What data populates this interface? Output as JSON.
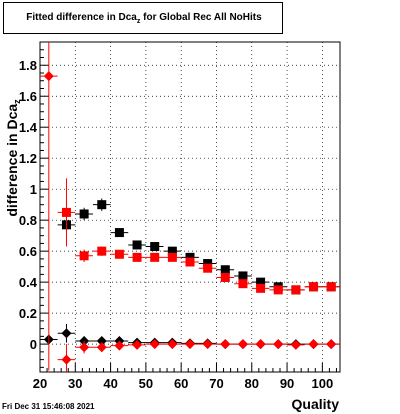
{
  "title": {
    "main": "Fitted difference in Dca",
    "sub": "z",
    "suffix": " for Global Rec All NoHits"
  },
  "datestamp": "Fri Dec 31 15:46:08 2021",
  "chart_data": {
    "type": "scatter",
    "xlabel": "Quality",
    "ylabel": "difference in Dca",
    "ylabel_sub": "z",
    "xlim": [
      20,
      105
    ],
    "ylim": [
      -0.18,
      1.95
    ],
    "grid": true,
    "xticks": [
      20,
      30,
      40,
      50,
      60,
      70,
      80,
      90,
      100
    ],
    "yticks": [
      0,
      0.2,
      0.4,
      0.6,
      0.8,
      1,
      1.2,
      1.4,
      1.6,
      1.8
    ],
    "ytick_labels": [
      "0",
      "0.2",
      "0.4",
      "0.6",
      "0.8",
      "1",
      "1.2",
      "1.4",
      "1.6",
      "1.8"
    ],
    "series": [
      {
        "marker": "square",
        "color": "#000000",
        "points": [
          {
            "x": 27.5,
            "y": 0.77,
            "err": 0.05
          },
          {
            "x": 32.5,
            "y": 0.84,
            "err": 0.04
          },
          {
            "x": 37.5,
            "y": 0.9,
            "err": 0.04
          },
          {
            "x": 42.5,
            "y": 0.72,
            "err": 0.02
          },
          {
            "x": 47.5,
            "y": 0.64,
            "err": 0.02
          },
          {
            "x": 52.5,
            "y": 0.63,
            "err": 0.02
          },
          {
            "x": 57.5,
            "y": 0.6,
            "err": 0.02
          },
          {
            "x": 62.5,
            "y": 0.56,
            "err": 0.02
          },
          {
            "x": 67.5,
            "y": 0.52,
            "err": 0.02
          },
          {
            "x": 72.5,
            "y": 0.48,
            "err": 0.02
          },
          {
            "x": 77.5,
            "y": 0.44,
            "err": 0.02
          },
          {
            "x": 82.5,
            "y": 0.4,
            "err": 0.02
          },
          {
            "x": 87.5,
            "y": 0.37,
            "err": 0.02
          },
          {
            "x": 92.5,
            "y": 0.35,
            "err": 0.02
          },
          {
            "x": 97.5,
            "y": 0.37,
            "err": 0.02
          },
          {
            "x": 102.5,
            "y": 0.37,
            "err": 0.02
          }
        ]
      },
      {
        "marker": "square",
        "color": "#ff0000",
        "points": [
          {
            "x": 27.5,
            "y": 0.85,
            "err": 0.22
          },
          {
            "x": 32.5,
            "y": 0.57,
            "err": 0.04
          },
          {
            "x": 37.5,
            "y": 0.6,
            "err": 0.03
          },
          {
            "x": 42.5,
            "y": 0.58,
            "err": 0.02
          },
          {
            "x": 47.5,
            "y": 0.56,
            "err": 0.02
          },
          {
            "x": 52.5,
            "y": 0.56,
            "err": 0.02
          },
          {
            "x": 57.5,
            "y": 0.56,
            "err": 0.02
          },
          {
            "x": 62.5,
            "y": 0.53,
            "err": 0.02
          },
          {
            "x": 67.5,
            "y": 0.49,
            "err": 0.02
          },
          {
            "x": 72.5,
            "y": 0.43,
            "err": 0.02
          },
          {
            "x": 77.5,
            "y": 0.39,
            "err": 0.02
          },
          {
            "x": 82.5,
            "y": 0.36,
            "err": 0.02
          },
          {
            "x": 87.5,
            "y": 0.35,
            "err": 0.02
          },
          {
            "x": 92.5,
            "y": 0.35,
            "err": 0.02
          },
          {
            "x": 97.5,
            "y": 0.37,
            "err": 0.02
          },
          {
            "x": 102.5,
            "y": 0.37,
            "err": 0.02
          }
        ]
      },
      {
        "marker": "diamond",
        "color": "#000000",
        "points": [
          {
            "x": 22.5,
            "y": 0.03,
            "err": 0.03
          },
          {
            "x": 27.5,
            "y": 0.07,
            "err": 0.06
          },
          {
            "x": 32.5,
            "y": 0.02,
            "err": 0.03
          },
          {
            "x": 37.5,
            "y": 0.02,
            "err": 0.02
          },
          {
            "x": 42.5,
            "y": 0.02,
            "err": 0.02
          },
          {
            "x": 47.5,
            "y": 0.01,
            "err": 0.02
          },
          {
            "x": 52.5,
            "y": 0.01,
            "err": 0.02
          },
          {
            "x": 57.5,
            "y": 0.01,
            "err": 0.02
          },
          {
            "x": 62.5,
            "y": 0.005,
            "err": 0.02
          },
          {
            "x": 67.5,
            "y": 0.005,
            "err": 0.02
          },
          {
            "x": 72.5,
            "y": 0.0,
            "err": 0.02
          },
          {
            "x": 77.5,
            "y": 0.0,
            "err": 0.02
          },
          {
            "x": 82.5,
            "y": 0.0,
            "err": 0.02
          },
          {
            "x": 87.5,
            "y": 0.0,
            "err": 0.02
          },
          {
            "x": 92.5,
            "y": 0.0,
            "err": 0.02
          },
          {
            "x": 97.5,
            "y": 0.0,
            "err": 0.02
          },
          {
            "x": 102.5,
            "y": 0.0,
            "err": 0.02
          }
        ]
      },
      {
        "marker": "diamond",
        "color": "#ff0000",
        "points": [
          {
            "x": 22.5,
            "y": 1.73,
            "err": 1.9
          },
          {
            "x": 27.5,
            "y": -0.1,
            "err": 0.1
          },
          {
            "x": 32.5,
            "y": -0.02,
            "err": 0.04
          },
          {
            "x": 37.5,
            "y": -0.02,
            "err": 0.03
          },
          {
            "x": 42.5,
            "y": -0.01,
            "err": 0.02
          },
          {
            "x": 47.5,
            "y": -0.005,
            "err": 0.02
          },
          {
            "x": 52.5,
            "y": 0.0,
            "err": 0.02
          },
          {
            "x": 57.5,
            "y": 0.0,
            "err": 0.02
          },
          {
            "x": 62.5,
            "y": 0.0,
            "err": 0.02
          },
          {
            "x": 67.5,
            "y": 0.0,
            "err": 0.02
          },
          {
            "x": 72.5,
            "y": 0.0,
            "err": 0.02
          },
          {
            "x": 77.5,
            "y": 0.0,
            "err": 0.02
          },
          {
            "x": 82.5,
            "y": 0.0,
            "err": 0.02
          },
          {
            "x": 87.5,
            "y": 0.0,
            "err": 0.02
          },
          {
            "x": 92.5,
            "y": -0.005,
            "err": 0.02
          },
          {
            "x": 97.5,
            "y": 0.0,
            "err": 0.02
          },
          {
            "x": 102.5,
            "y": 0.0,
            "err": 0.02
          }
        ]
      }
    ]
  }
}
